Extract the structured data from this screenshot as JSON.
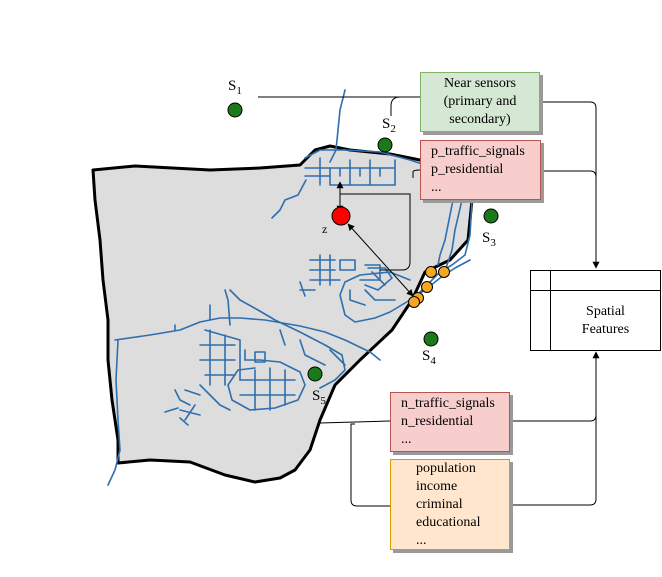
{
  "sensors": [
    {
      "name": "S",
      "index": "1"
    },
    {
      "name": "S",
      "index": "2"
    },
    {
      "name": "S",
      "index": "3"
    },
    {
      "name": "S",
      "index": "4"
    },
    {
      "name": "S",
      "index": "5"
    }
  ],
  "target_label": "z",
  "near_sensors_box": {
    "lines": [
      "Near sensors",
      "(primary and",
      "secondary)"
    ]
  },
  "p_box": {
    "lines": [
      "p_traffic_signals",
      "p_residential",
      "..."
    ]
  },
  "n_box": {
    "lines": [
      "n_traffic_signals",
      "n_residential",
      "..."
    ]
  },
  "demographic_box": {
    "lines": [
      "population",
      "income",
      "criminal",
      "educational",
      "..."
    ]
  },
  "spatial_box": {
    "lines": [
      "Spatial",
      "Features"
    ]
  },
  "colors": {
    "region_fill": "#dddddd",
    "road": "#2f6fae",
    "sensor": "#1a7a1a",
    "target": "#ff0000",
    "poi": "#f5a623"
  }
}
